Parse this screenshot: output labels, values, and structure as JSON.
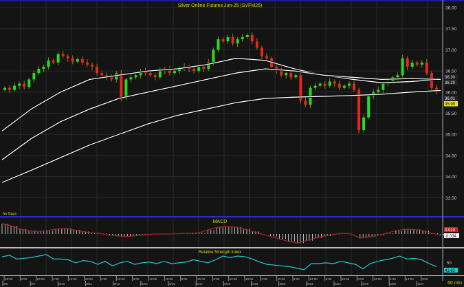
{
  "chart_data": {
    "type": "candlestick",
    "title": "Silver Online Futures Jun-25 (SVFM25)",
    "note": "No Gaps",
    "interval": "60 min",
    "ylim": [
      33.3,
      38.1
    ],
    "yticks": [
      "38.00",
      "37.50",
      "37.00",
      "36.50",
      "36.00",
      "35.50",
      "35.00",
      "34.50",
      "34.00",
      "33.50"
    ],
    "closes": [
      36.1,
      36.05,
      36.15,
      36.2,
      36.12,
      36.3,
      36.45,
      36.55,
      36.6,
      36.75,
      36.7,
      36.9,
      36.85,
      36.8,
      36.72,
      36.78,
      36.7,
      36.65,
      36.6,
      36.45,
      36.4,
      36.35,
      36.3,
      36.45,
      35.85,
      36.3,
      36.35,
      36.4,
      36.5,
      36.45,
      36.4,
      36.35,
      36.5,
      36.55,
      36.45,
      36.5,
      36.55,
      36.6,
      36.55,
      36.5,
      36.6,
      36.55,
      36.7,
      37.0,
      37.25,
      37.2,
      37.3,
      37.15,
      37.25,
      37.3,
      37.35,
      37.2,
      37.05,
      36.85,
      36.8,
      36.6,
      36.5,
      36.4,
      36.45,
      36.35,
      36.4,
      35.8,
      35.7,
      36.1,
      36.15,
      36.2,
      36.15,
      36.25,
      36.2,
      36.1,
      36.15,
      36.2,
      36.05,
      35.1,
      35.4,
      35.9,
      36.0,
      36.05,
      36.2,
      36.25,
      36.35,
      36.4,
      36.8,
      36.6,
      36.7,
      36.65,
      36.7,
      36.45,
      36.1,
      36.0
    ],
    "moving_averages": [
      [
        35.08,
        35.6,
        36.0,
        36.3,
        36.4,
        36.5,
        36.55,
        36.65,
        36.8,
        36.75,
        36.55,
        36.4,
        36.3,
        36.22,
        36.25,
        36.3
      ],
      [
        34.4,
        34.9,
        35.3,
        35.6,
        35.85,
        36.0,
        36.15,
        36.3,
        36.45,
        36.55,
        36.5,
        36.4,
        36.35,
        36.3,
        36.32,
        36.3
      ],
      [
        33.86,
        34.15,
        34.45,
        34.75,
        35.0,
        35.25,
        35.45,
        35.6,
        35.75,
        35.85,
        35.88,
        35.9,
        35.92,
        35.95,
        36.0,
        36.04
      ]
    ],
    "price_labels": [
      {
        "text": "36.30",
        "color": "#dddddd"
      },
      {
        "text": "36.29",
        "color": "#dddddd"
      },
      {
        "text": "36.01",
        "color": "#ffffff"
      },
      {
        "text": "35.99",
        "color": "#e8e800"
      }
    ],
    "macd": {
      "title": "MACD",
      "hist": [
        0.25,
        0.2,
        0.12,
        0.08,
        0.06,
        0.08,
        0.12,
        0.14,
        0.1,
        0.06,
        0.03,
        0.01,
        -0.03,
        -0.05,
        -0.06,
        -0.04,
        -0.02,
        0,
        0,
        0,
        0.01,
        0.02,
        0.03,
        0.1,
        0.16,
        0.18,
        0.17,
        0.12,
        0.06,
        0.0,
        -0.06,
        -0.12,
        -0.18,
        -0.22,
        -0.16,
        -0.1,
        -0.05,
        -0.01,
        0.02,
        0.0,
        -0.1,
        -0.07,
        -0.03,
        0.02,
        0.08,
        0.12,
        0.11,
        0.08,
        0.02,
        -0.03
      ],
      "label_signal": "0.010",
      "label_macd": "-0.034"
    },
    "rsi": {
      "title": "Relative Strength Index",
      "values": [
        68,
        72,
        62,
        64,
        66,
        70,
        74,
        62,
        62,
        60,
        52,
        58,
        56,
        48,
        56,
        44,
        52,
        56,
        48,
        52,
        54,
        50,
        56,
        50,
        52,
        54,
        60,
        56,
        52,
        60,
        70,
        66,
        70,
        68,
        62,
        54,
        48,
        46,
        44,
        42,
        38,
        34,
        50,
        50,
        52,
        50,
        56,
        52,
        48,
        36,
        50,
        56,
        60,
        64,
        70,
        62,
        64,
        60,
        50,
        42
      ],
      "tick": "50",
      "label": "41.62"
    },
    "dates": [
      "6/6",
      "6/7",
      "6/10",
      "6/11",
      "6/12",
      "6/13",
      "6/16",
      "6/17",
      "6/18",
      "6/19",
      "6/20",
      "6/23",
      "6/24",
      "6/25",
      "6/26",
      "6/27"
    ],
    "times": [
      "18:00",
      "6:00",
      "15:00",
      "3:00",
      "12:00",
      "18:00",
      "3:00",
      "15:00",
      "3:00",
      "12:00",
      "18:00",
      "3:00",
      "15:00",
      "3:00",
      "12:00",
      "18:00",
      "3:00",
      "15:00",
      "3:00",
      "12:00",
      "6:00",
      "15:00",
      "3:00",
      "12:00",
      "6:00",
      "14:00",
      "3:00"
    ],
    "colors": {
      "up": "#22dd22",
      "down": "#ee2222",
      "ma": "#ffffff",
      "rsi": "#22cccc",
      "macd_signal": "#aa2222",
      "title": "#d8d800",
      "background": "#141414",
      "grid": "#2a2a2a"
    }
  }
}
